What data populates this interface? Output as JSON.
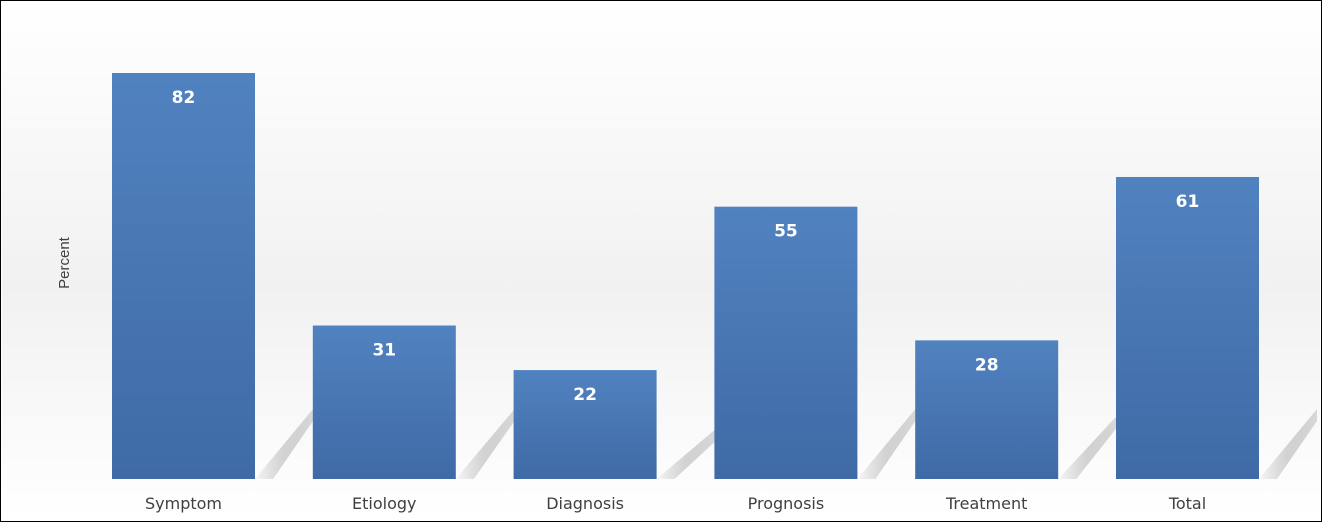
{
  "chart_data": {
    "type": "bar",
    "title": "",
    "xlabel": "",
    "ylabel": "Percent",
    "categories": [
      "Symptom",
      "Etiology",
      "Diagnosis",
      "Prognosis",
      "Treatment",
      "Total"
    ],
    "values": [
      82,
      31,
      22,
      55,
      28,
      61
    ],
    "ylim": [
      0,
      90
    ],
    "grid": false,
    "legend": "none",
    "data_labels": true,
    "bar_color": "#4a77b4"
  }
}
